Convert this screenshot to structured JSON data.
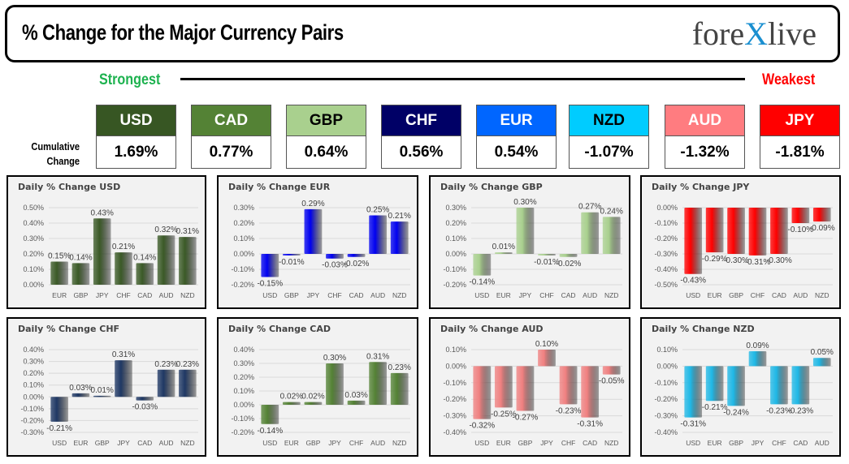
{
  "header": {
    "title": "% Change for the Major Currency Pairs",
    "logo": "forexlive"
  },
  "scale": {
    "strongest": "Strongest",
    "weakest": "Weakest"
  },
  "cumulative_label_1": "Cumulative",
  "cumulative_label_2": "Change",
  "currencies": [
    {
      "name": "USD",
      "value": "1.69%",
      "color": "#375623",
      "text": "#ffffff"
    },
    {
      "name": "CAD",
      "value": "0.77%",
      "color": "#548235",
      "text": "#ffffff"
    },
    {
      "name": "GBP",
      "value": "0.64%",
      "color": "#a9d08e",
      "text": "#000000"
    },
    {
      "name": "CHF",
      "value": "0.56%",
      "color": "#000066",
      "text": "#ffffff"
    },
    {
      "name": "EUR",
      "value": "0.54%",
      "color": "#0066ff",
      "text": "#ffffff"
    },
    {
      "name": "NZD",
      "value": "-1.07%",
      "color": "#00ccff",
      "text": "#000000"
    },
    {
      "name": "AUD",
      "value": "-1.32%",
      "color": "#ff7c80",
      "text": "#ffffff"
    },
    {
      "name": "JPY",
      "value": "-1.81%",
      "color": "#ff0000",
      "text": "#ffffff"
    }
  ],
  "chart_data": [
    {
      "type": "bar",
      "title": "Daily % Change USD",
      "color": "#3b5a27",
      "categories": [
        "EUR",
        "GBP",
        "JPY",
        "CHF",
        "CAD",
        "AUD",
        "NZD"
      ],
      "values": [
        0.15,
        0.14,
        0.43,
        0.21,
        0.14,
        0.32,
        0.31
      ],
      "labels": [
        "0.15%",
        "0.14%",
        "0.43%",
        "0.21%",
        "0.14%",
        "0.32%",
        "0.31%"
      ],
      "ylim": [
        0,
        0.5
      ],
      "ticks": [
        "0.00%",
        "0.10%",
        "0.20%",
        "0.30%",
        "0.40%",
        "0.50%"
      ],
      "grid": true
    },
    {
      "type": "bar",
      "title": "Daily % Change EUR",
      "color": "#0000f0",
      "categories": [
        "USD",
        "GBP",
        "JPY",
        "CHF",
        "CAD",
        "AUD",
        "NZD"
      ],
      "values": [
        -0.15,
        -0.01,
        0.29,
        -0.03,
        -0.02,
        0.25,
        0.21
      ],
      "labels": [
        "-0.15%",
        "-0.01%",
        "0.29%",
        "-0.03%",
        "-0.02%",
        "0.25%",
        "0.21%"
      ],
      "ylim": [
        -0.2,
        0.3
      ],
      "ticks": [
        "-0.20%",
        "-0.10%",
        "0.00%",
        "0.10%",
        "0.20%",
        "0.30%"
      ],
      "grid": true
    },
    {
      "type": "bar",
      "title": "Daily % Change GBP",
      "color": "#a9d08e",
      "categories": [
        "USD",
        "EUR",
        "JPY",
        "CHF",
        "CAD",
        "AUD",
        "NZD"
      ],
      "values": [
        -0.14,
        0.01,
        0.3,
        -0.01,
        -0.02,
        0.27,
        0.24
      ],
      "labels": [
        "-0.14%",
        "0.01%",
        "0.30%",
        "-0.01%",
        "-0.02%",
        "0.27%",
        "0.24%"
      ],
      "ylim": [
        -0.2,
        0.3
      ],
      "ticks": [
        "-0.20%",
        "-0.10%",
        "0.00%",
        "0.10%",
        "0.20%",
        "0.30%"
      ],
      "grid": true
    },
    {
      "type": "bar",
      "title": "Daily % Change JPY",
      "color": "#ff0000",
      "categories": [
        "USD",
        "EUR",
        "GBP",
        "CHF",
        "CAD",
        "AUD",
        "NZD"
      ],
      "values": [
        -0.43,
        -0.29,
        -0.3,
        -0.31,
        -0.3,
        -0.1,
        -0.09
      ],
      "labels": [
        "-0.43%",
        "-0.29%",
        "-0.30%",
        "-0.31%",
        "-0.30%",
        "-0.10%",
        "-0.09%"
      ],
      "ylim": [
        -0.5,
        0
      ],
      "ticks": [
        "-0.50%",
        "-0.40%",
        "-0.30%",
        "-0.20%",
        "-0.10%",
        "0.00%"
      ],
      "grid": true
    },
    {
      "type": "bar",
      "title": "Daily % Change CHF",
      "color": "#1f3864",
      "categories": [
        "USD",
        "EUR",
        "GBP",
        "JPY",
        "CAD",
        "AUD",
        "NZD"
      ],
      "values": [
        -0.21,
        0.03,
        0.01,
        0.31,
        -0.03,
        0.23,
        0.23
      ],
      "labels": [
        "-0.21%",
        "0.03%",
        "0.01%",
        "0.31%",
        "-0.03%",
        "0.23%",
        "0.23%"
      ],
      "ylim": [
        -0.3,
        0.4
      ],
      "ticks": [
        "-0.30%",
        "-0.20%",
        "-0.10%",
        "0.00%",
        "0.10%",
        "0.20%",
        "0.30%",
        "0.40%"
      ],
      "grid": true
    },
    {
      "type": "bar",
      "title": "Daily % Change CAD",
      "color": "#548235",
      "categories": [
        "USD",
        "EUR",
        "GBP",
        "JPY",
        "CHF",
        "AUD",
        "NZD"
      ],
      "values": [
        -0.14,
        0.02,
        0.02,
        0.3,
        0.03,
        0.31,
        0.23
      ],
      "labels": [
        "-0.14%",
        "0.02%",
        "0.02%",
        "0.30%",
        "0.03%",
        "0.31%",
        "0.23%"
      ],
      "ylim": [
        -0.2,
        0.4
      ],
      "ticks": [
        "-0.20%",
        "-0.10%",
        "0.00%",
        "0.10%",
        "0.20%",
        "0.30%",
        "0.40%"
      ],
      "grid": true
    },
    {
      "type": "bar",
      "title": "Daily % Change AUD",
      "color": "#f08080",
      "categories": [
        "USD",
        "EUR",
        "GBP",
        "JPY",
        "CHF",
        "CAD",
        "NZD"
      ],
      "values": [
        -0.32,
        -0.25,
        -0.27,
        0.1,
        -0.23,
        -0.31,
        -0.05
      ],
      "labels": [
        "-0.32%",
        "-0.25%",
        "-0.27%",
        "0.10%",
        "-0.23%",
        "-0.31%",
        "-0.05%"
      ],
      "ylim": [
        -0.4,
        0.1
      ],
      "ticks": [
        "-0.40%",
        "-0.30%",
        "-0.20%",
        "-0.10%",
        "0.00%",
        "0.10%"
      ],
      "grid": true
    },
    {
      "type": "bar",
      "title": "Daily % Change NZD",
      "color": "#1fb8e6",
      "categories": [
        "USD",
        "EUR",
        "GBP",
        "JPY",
        "CHF",
        "CAD",
        "AUD"
      ],
      "values": [
        -0.31,
        -0.21,
        -0.24,
        0.09,
        -0.23,
        -0.23,
        0.05
      ],
      "labels": [
        "-0.31%",
        "-0.21%",
        "-0.24%",
        "0.09%",
        "-0.23%",
        "-0.23%",
        "0.05%"
      ],
      "ylim": [
        -0.4,
        0.1
      ],
      "ticks": [
        "-0.40%",
        "-0.30%",
        "-0.20%",
        "-0.10%",
        "0.00%",
        "0.10%"
      ],
      "grid": true
    }
  ]
}
